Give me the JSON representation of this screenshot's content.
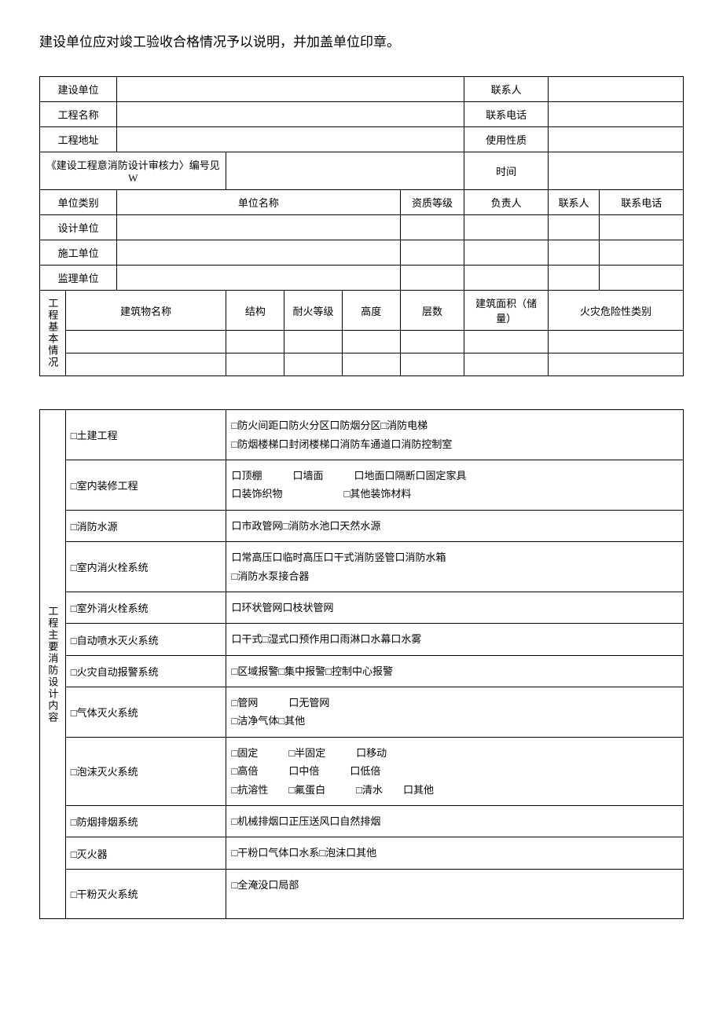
{
  "intro_text": "建设单位应对竣工验收合格情况予以说明，并加盖单位印章。",
  "header": {
    "row1_label": "建设单位",
    "row1_right": "联系人",
    "row2_label": "工程名称",
    "row2_right": "联系电话",
    "row3_label": "工程地址",
    "row3_right": "使用性质",
    "row4_label": "《建设工程意消防设计审核力〉编号见W",
    "row4_right": "时间",
    "row5_c1": "单位类别",
    "row5_c2": "单位名称",
    "row5_c3": "资质等级",
    "row5_c4": "负责人",
    "row5_c5": "联系人",
    "row5_c6": "联系电话",
    "row6_label": "设计单位",
    "row7_label": "施工单位",
    "row8_label": "监理单位"
  },
  "basic_info": {
    "section_label": "工程基本情况",
    "col1": "建筑物名称",
    "col2": "结构",
    "col3": "耐火等级",
    "col4": "高度",
    "col5": "层数",
    "col6": "建筑面积（储量）",
    "col7": "火灾危险性类别"
  },
  "fire_design": {
    "section_label": "工程主要消防设计内容",
    "rows": [
      {
        "label": "□土建工程",
        "content": "□防火间距口防火分区口防烟分区□消防电梯\n□防烟楼梯口封闭楼梯口消防车通道口消防控制室"
      },
      {
        "label": "□室内装修工程",
        "content": "口顶棚　　　口墙面　　　口地面口隔断口固定家具\n口装饰织物　　　　　　□其他装饰材料"
      },
      {
        "label": "□消防水源",
        "content": "口市政管网□消防水池口天然水源"
      },
      {
        "label": "□室内消火栓系统",
        "content": "口常高压口临时高压口干式消防竖管口消防水箱\n□消防水泵接合器"
      },
      {
        "label": "□室外消火栓系统",
        "content": "口环状管网口枝状管网"
      },
      {
        "label": "□自动喷水灭火系统",
        "content": "口干式□湿式口预作用口雨淋口水幕口水雾"
      },
      {
        "label": "□火灾自动报警系统",
        "content": "□区域报警□集中报警□控制中心报警"
      },
      {
        "label": "□气体灭火系统",
        "content": "□管网　　　口无管网\n□洁净气体□其他"
      },
      {
        "label": "□泡沫灭火系统",
        "content": "□固定　　　□半固定　　　口移动\n□高倍　　　口中倍　　　口低倍\n□抗溶性　　□氟蛋白　　　□清水　　口其他"
      },
      {
        "label": "□防烟排烟系统",
        "content": "□机械排烟口正压送风口自然排烟"
      },
      {
        "label": "□灭火器",
        "content": "□干粉口气体口水系□泡沫口其他"
      },
      {
        "label": "□干粉灭火系统",
        "content": "□全淹没口局部"
      }
    ]
  },
  "colors": {
    "border": "#000000",
    "text": "#000000",
    "background": "#ffffff"
  }
}
